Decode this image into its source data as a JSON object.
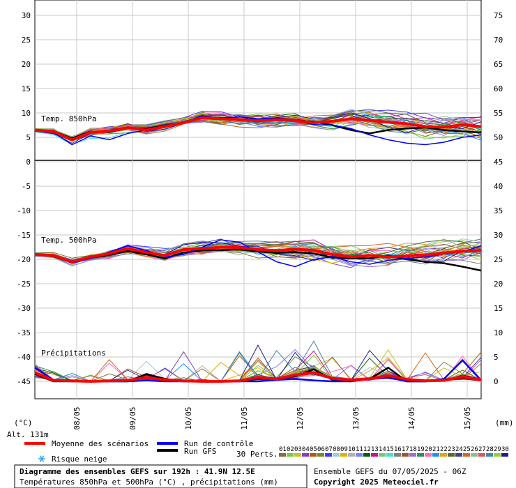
{
  "chart_data": {
    "type": "line",
    "x": [
      "08/05",
      "09/05",
      "10/05",
      "11/05",
      "12/05",
      "13/05",
      "14/05",
      "15/05"
    ],
    "left_axis_ticks": [
      "30",
      "25",
      "20",
      "15",
      "10",
      "5",
      "0",
      "-5",
      "-10",
      "-15",
      "-20",
      "-25",
      "-30",
      "-35",
      "-40",
      "-45"
    ],
    "right_axis_ticks": [
      "75",
      "70",
      "65",
      "60",
      "55",
      "50",
      "45",
      "40",
      "35",
      "30",
      "25",
      "20",
      "15",
      "10",
      "5",
      "0"
    ],
    "left_unit": "(°C)",
    "right_unit": "(mm)",
    "altitude": "Alt. 131m",
    "panels": {
      "t850": {
        "label": "Temp. 850hPa",
        "ylim": [
          0,
          30
        ]
      },
      "t500": {
        "label": "Temp. 500hPa",
        "ylim": [
          -45,
          0
        ]
      },
      "precip": {
        "label": "Précipitations",
        "ylim": [
          0,
          10
        ]
      }
    },
    "series": {
      "t850_mean": [
        6.5,
        6.2,
        4.5,
        6.0,
        6.3,
        7.0,
        6.5,
        7.2,
        8.0,
        9.0,
        8.8,
        8.6,
        8.4,
        8.6,
        8.4,
        8.0,
        8.3,
        8.8,
        8.5,
        8.1,
        7.8,
        7.2,
        7.1,
        7.6,
        7.2
      ],
      "t850_control": [
        6.5,
        6.0,
        3.5,
        5.3,
        4.5,
        5.8,
        6.5,
        7.3,
        8.2,
        9.3,
        9.0,
        9.2,
        8.8,
        9.0,
        8.3,
        7.6,
        7.5,
        6.8,
        5.5,
        4.5,
        3.8,
        3.5,
        4.0,
        5.0,
        5.5
      ],
      "t850_gfs": [
        6.5,
        6.3,
        4.8,
        6.2,
        6.1,
        6.9,
        6.8,
        7.4,
        8.1,
        8.9,
        9.0,
        8.6,
        8.7,
        8.9,
        8.5,
        8.2,
        7.5,
        6.5,
        5.8,
        6.5,
        6.8,
        7.0,
        6.5,
        6.2,
        6.0
      ],
      "t500_mean": [
        -19.0,
        -19.2,
        -20.5,
        -19.5,
        -18.8,
        -17.8,
        -18.6,
        -19.2,
        -18.0,
        -17.8,
        -17.5,
        -17.6,
        -18.0,
        -18.2,
        -17.9,
        -18.2,
        -19.0,
        -19.5,
        -19.2,
        -19.5,
        -19.3,
        -19.1,
        -18.7,
        -18.3,
        -18.2
      ],
      "t500_control": [
        -19.0,
        -19.3,
        -20.8,
        -19.8,
        -18.5,
        -17.2,
        -18.2,
        -19.5,
        -19.0,
        -17.5,
        -16.0,
        -16.5,
        -18.5,
        -20.5,
        -21.5,
        -20.0,
        -19.5,
        -20.5,
        -21.0,
        -20.2,
        -19.8,
        -19.5,
        -18.9,
        -18.5,
        -17.2
      ],
      "t500_gfs": [
        -19.0,
        -19.4,
        -20.6,
        -19.7,
        -19.1,
        -18.3,
        -19.0,
        -19.8,
        -18.6,
        -18.2,
        -18.1,
        -18.0,
        -18.4,
        -18.7,
        -18.5,
        -18.8,
        -19.6,
        -19.8,
        -19.8,
        -19.2,
        -20.0,
        -20.5,
        -20.8,
        -21.5,
        -22.3
      ],
      "precip_mean": [
        1.8,
        0.2,
        0.1,
        0.0,
        0.1,
        0.2,
        0.8,
        0.3,
        0.1,
        0.0,
        0.0,
        0.1,
        0.8,
        0.5,
        1.3,
        1.8,
        0.6,
        0.3,
        0.5,
        1.2,
        0.4,
        0.1,
        0.2,
        0.9,
        0.3
      ],
      "precip_control": [
        2.8,
        0.3,
        0.0,
        0.0,
        0.0,
        0.0,
        0.2,
        0.0,
        0.0,
        0.0,
        0.0,
        0.0,
        0.0,
        0.3,
        0.5,
        0.2,
        0.0,
        0.0,
        0.5,
        0.8,
        0.0,
        0.0,
        0.5,
        4.3,
        0.2
      ],
      "precip_gfs": [
        1.5,
        0.0,
        0.0,
        0.0,
        0.0,
        0.0,
        1.5,
        0.5,
        0.0,
        0.0,
        0.0,
        0.0,
        0.5,
        0.5,
        1.0,
        2.5,
        0.3,
        0.0,
        0.5,
        2.8,
        0.0,
        0.0,
        0.3,
        0.6,
        0.2
      ]
    },
    "ensemble": {
      "count": 30,
      "seeds": [
        3,
        11,
        17,
        23,
        29,
        31,
        37,
        41,
        43,
        47,
        53,
        59,
        61,
        67,
        71,
        73,
        79,
        83,
        89,
        97,
        101,
        103,
        107,
        109,
        113,
        127,
        131,
        137,
        139,
        149
      ],
      "colors": [
        "#8b6a3e",
        "#7ac943",
        "#c2c22e",
        "#7f40bf",
        "#b35806",
        "#6a8e23",
        "#3c3cff",
        "#9ec9e0",
        "#e0b000",
        "#b0b0b0",
        "#8080ff",
        "#006400",
        "#c71585",
        "#80c080",
        "#40e0d0",
        "#808080",
        "#a0522d",
        "#9370db",
        "#2e8b57",
        "#ff69b4",
        "#1e90ff",
        "#daa520",
        "#556b2f",
        "#483d8b",
        "#d2691e",
        "#8fbc8f",
        "#cd5c5c",
        "#4682b4",
        "#9acd32",
        "#1a1aa0"
      ]
    },
    "legend": {
      "mean": {
        "label": "Moyenne des scénarios",
        "color": "#ff0000"
      },
      "control": {
        "label": "Run de contrôle",
        "color": "#0000ff"
      },
      "gfs": {
        "label": "Run GFS",
        "color": "#000000"
      },
      "snow": {
        "label": "Risque neige",
        "icon": "snowflake-icon"
      },
      "perturbations_label": "30 Perts.",
      "perturbation_numbers": [
        "01",
        "02",
        "03",
        "04",
        "05",
        "06",
        "07",
        "08",
        "09",
        "10",
        "11",
        "12",
        "13",
        "14",
        "15",
        "16",
        "17",
        "18",
        "19",
        "20",
        "21",
        "22",
        "23",
        "24",
        "25",
        "26",
        "27",
        "28",
        "29",
        "30"
      ]
    }
  },
  "footer": {
    "title": "Diagramme des ensembles GEFS sur 192h : 41.9N 12.5E",
    "subtitle": "Températures 850hPa et 500hPa (°C) , précipitations (mm)",
    "run": "Ensemble GEFS du 07/05/2025 - 06Z",
    "copyright": "Copyright 2025 Meteociel.fr"
  }
}
